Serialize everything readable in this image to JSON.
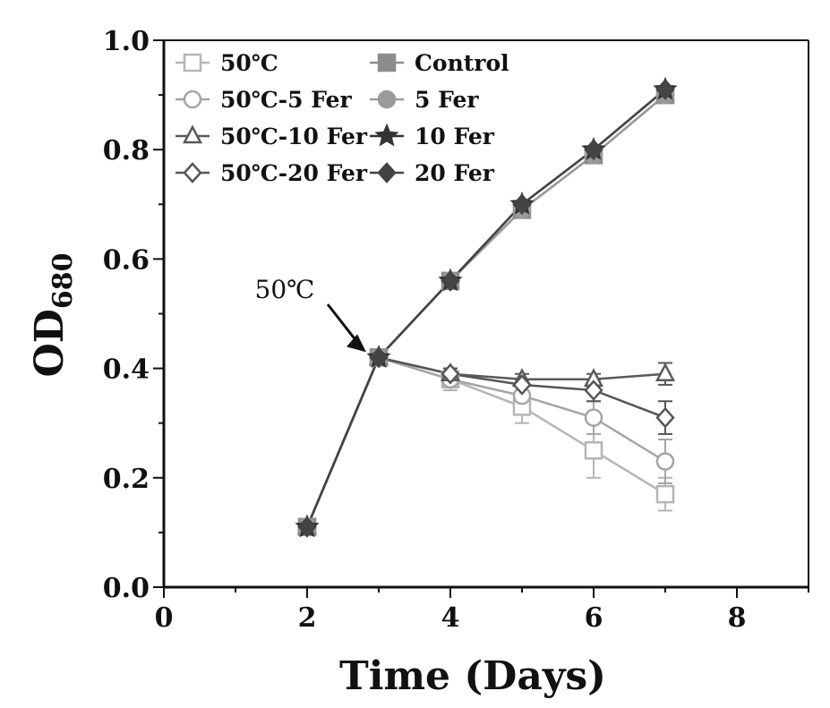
{
  "chart_data": {
    "type": "line",
    "xlabel": "Time (Days)",
    "ylabel": {
      "main": "OD",
      "sub": "680"
    },
    "xlim": [
      0,
      9
    ],
    "ylim": [
      0,
      1.0
    ],
    "xticks": [
      0,
      2,
      4,
      6,
      8
    ],
    "xtick_labels": [
      "0",
      "2",
      "4",
      "6",
      "8"
    ],
    "yticks": [
      0,
      0.2,
      0.4,
      0.6,
      0.8,
      1.0
    ],
    "ytick_labels": [
      "0.0",
      "0.2",
      "0.4",
      "0.6",
      "0.8",
      "1.0"
    ],
    "grid": false,
    "legend_position": "top-left",
    "annotation": {
      "text": "50℃",
      "x": 3,
      "y": 0.42
    },
    "series": [
      {
        "name": "50℃",
        "marker": "square",
        "filled": false,
        "color": "#b5b5b5",
        "x": [
          2,
          3,
          4,
          5,
          6,
          7
        ],
        "y": [
          0.11,
          0.42,
          0.38,
          0.33,
          0.25,
          0.17
        ],
        "err": [
          0,
          0,
          0.02,
          0.03,
          0.05,
          0.03
        ]
      },
      {
        "name": "50℃-5 Fer",
        "marker": "circle",
        "filled": false,
        "color": "#a5a5a5",
        "x": [
          2,
          3,
          4,
          5,
          6,
          7
        ],
        "y": [
          0.11,
          0.42,
          0.38,
          0.35,
          0.31,
          0.23
        ],
        "err": [
          0,
          0,
          0.01,
          0.02,
          0.03,
          0.04
        ]
      },
      {
        "name": "50℃-10 Fer",
        "marker": "triangle",
        "filled": false,
        "color": "#5a5a5a",
        "x": [
          2,
          3,
          4,
          5,
          6,
          7
        ],
        "y": [
          0.11,
          0.42,
          0.39,
          0.38,
          0.38,
          0.39
        ],
        "err": [
          0,
          0,
          0.01,
          0.01,
          0.01,
          0.02
        ]
      },
      {
        "name": "50℃-20 Fer",
        "marker": "diamond",
        "filled": false,
        "color": "#555555",
        "x": [
          2,
          3,
          4,
          5,
          6,
          7
        ],
        "y": [
          0.11,
          0.42,
          0.39,
          0.37,
          0.36,
          0.31
        ],
        "err": [
          0,
          0,
          0.01,
          0.01,
          0.02,
          0.03
        ]
      },
      {
        "name": "Control",
        "marker": "square",
        "filled": true,
        "color": "#8c8c8c",
        "x": [
          2,
          3,
          4,
          5,
          6,
          7
        ],
        "y": [
          0.11,
          0.42,
          0.56,
          0.69,
          0.79,
          0.9
        ],
        "err": [
          0,
          0,
          0,
          0,
          0,
          0
        ]
      },
      {
        "name": "5 Fer",
        "marker": "circle",
        "filled": true,
        "color": "#9a9a9a",
        "x": [
          2,
          3,
          4,
          5,
          6,
          7
        ],
        "y": [
          0.11,
          0.42,
          0.56,
          0.69,
          0.79,
          0.9
        ],
        "err": [
          0,
          0,
          0,
          0,
          0,
          0
        ]
      },
      {
        "name": "10 Fer",
        "marker": "star",
        "filled": true,
        "color": "#333333",
        "x": [
          2,
          3,
          4,
          5,
          6,
          7
        ],
        "y": [
          0.11,
          0.42,
          0.56,
          0.7,
          0.8,
          0.91
        ],
        "err": [
          0,
          0,
          0,
          0,
          0,
          0
        ]
      },
      {
        "name": "20 Fer",
        "marker": "diamond",
        "filled": true,
        "color": "#444444",
        "x": [
          2,
          3,
          4,
          5,
          6,
          7
        ],
        "y": [
          0.11,
          0.42,
          0.56,
          0.7,
          0.8,
          0.91
        ],
        "err": [
          0,
          0,
          0,
          0,
          0,
          0
        ]
      }
    ]
  }
}
